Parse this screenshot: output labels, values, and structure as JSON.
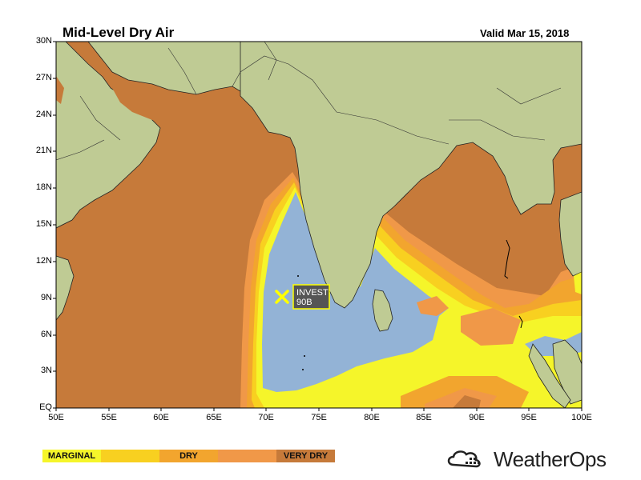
{
  "header": {
    "title": "Mid-Level Dry Air",
    "valid": "Valid Mar 15, 2018"
  },
  "map": {
    "lat_labels": [
      "30N",
      "27N",
      "24N",
      "21N",
      "18N",
      "15N",
      "12N",
      "9N",
      "6N",
      "3N",
      "EQ"
    ],
    "lon_labels": [
      "50E",
      "55E",
      "60E",
      "65E",
      "70E",
      "75E",
      "80E",
      "85E",
      "90E",
      "95E",
      "100E"
    ],
    "storm": {
      "label_line1": "INVEST",
      "label_line2": "90B",
      "lon": 71.3,
      "lat": 9.3
    },
    "colors": {
      "land": "#bfcb94",
      "ocean": "#93b3d6",
      "marginal": "#f5f52a",
      "light_dry": "#f8d020",
      "dry": "#f2a52e",
      "orange": "#f09848",
      "very_dry": "#c67a3a"
    }
  },
  "legend": [
    {
      "label": "MARGINAL",
      "color": "#f5f52a"
    },
    {
      "label": "",
      "color": "#f8d020"
    },
    {
      "label": "DRY",
      "color": "#f2a52e"
    },
    {
      "label": "",
      "color": "#f09848"
    },
    {
      "label": "VERY DRY",
      "color": "#c67a3a"
    }
  ],
  "logo": {
    "text": "WeatherOps"
  }
}
